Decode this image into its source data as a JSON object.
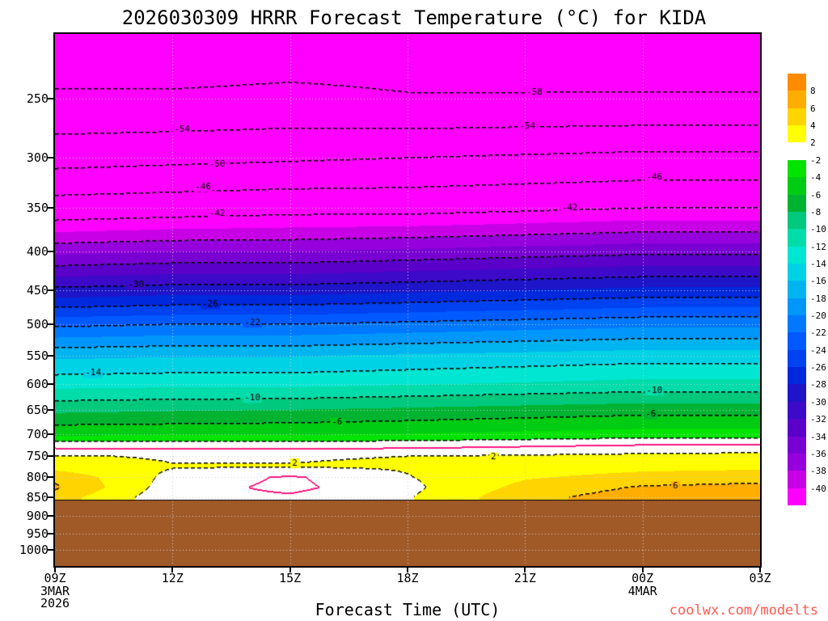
{
  "watermark": {
    "text": "coolwx.com/modelts",
    "color": "#ff5a52"
  },
  "chart_data": {
    "type": "heatmap",
    "title": "2026030309 HRRR Forecast Temperature (°C) for KIDA",
    "xlabel": "Forecast Time (UTC)",
    "model": "HRRR",
    "run": "2026030309",
    "station": "KIDA",
    "times": [
      "09Z",
      "12Z",
      "15Z",
      "18Z",
      "21Z",
      "00Z",
      "03Z"
    ],
    "x_date_labels": [
      {
        "under": "09Z",
        "lines": [
          "3MAR",
          "2026"
        ]
      },
      {
        "under": "00Z",
        "lines": [
          "4MAR"
        ]
      }
    ],
    "y_ticks": [
      250,
      300,
      350,
      400,
      450,
      500,
      550,
      600,
      650,
      700,
      750,
      800,
      850,
      900,
      950,
      1000
    ],
    "y_range": [
      205,
      1050
    ],
    "levels": [
      200,
      250,
      300,
      350,
      400,
      450,
      500,
      550,
      600,
      650,
      700,
      725,
      750,
      775,
      800,
      825,
      850
    ],
    "temps_c": [
      [
        -61,
        -57.5,
        -51.5,
        -44,
        -36.5,
        -29.5,
        -22.5,
        -16.5,
        -12.8,
        -8.5,
        -4.5,
        -0.8,
        2.2,
        3.2,
        5.5,
        6.3,
        5.0
      ],
      [
        -61,
        -57.5,
        -51,
        -43.5,
        -36,
        -29,
        -22,
        -16.2,
        -12.6,
        -8.2,
        -4.4,
        -0.9,
        1.8,
        2.1,
        1.4,
        0.9,
        0.6
      ],
      [
        -60.5,
        -57.2,
        -50.5,
        -43,
        -36,
        -29,
        -22,
        -16.2,
        -12.6,
        -8.0,
        -4.3,
        -0.8,
        1.9,
        2.05,
        -0.3,
        -0.5,
        0.3
      ],
      [
        -60,
        -57.8,
        -50,
        -43,
        -35.5,
        -28.5,
        -21.5,
        -15.8,
        -12.2,
        -7.6,
        -4.0,
        -0.7,
        2.0,
        2.2,
        1.9,
        1.5,
        1.8
      ],
      [
        -60,
        -57.8,
        -49.5,
        -42.5,
        -35,
        -28,
        -21,
        -15.4,
        -11.8,
        -7.2,
        -3.6,
        -0.3,
        2.3,
        2.8,
        3.8,
        4.6,
        5.4
      ],
      [
        -59.8,
        -57.8,
        -49,
        -42,
        -34.5,
        -27.5,
        -20.5,
        -15,
        -11.4,
        -6.8,
        -3.2,
        0.1,
        2.6,
        3.4,
        4.8,
        6.2,
        7.0
      ],
      [
        -59.8,
        -57.8,
        -49,
        -42,
        -34.5,
        -27.5,
        -20.5,
        -15,
        -11.4,
        -6.8,
        -3.2,
        0.3,
        2.8,
        3.6,
        5.2,
        6.6,
        7.8
      ]
    ],
    "surface_pressure_hpa": 857,
    "below_ground_color": "#a05a28",
    "contour_levels": [
      6,
      2,
      -2,
      -6,
      -10,
      -14,
      -18,
      -22,
      -26,
      -30,
      -34,
      -38,
      -42,
      -46,
      -50,
      -54,
      -58
    ],
    "zero_isotherm": {
      "value": 0,
      "color": "#ff1980"
    },
    "grid": {
      "color": "#cfcfcf",
      "style": "dotted"
    },
    "contour_labels": [
      {
        "text": "-58",
        "t": 0.68,
        "p": 245
      },
      {
        "text": "-54",
        "t": 0.18,
        "p": 275
      },
      {
        "text": "-54",
        "t": 0.67,
        "p": 272
      },
      {
        "text": "-50",
        "t": 0.23,
        "p": 306
      },
      {
        "text": "-46",
        "t": 0.21,
        "p": 328
      },
      {
        "text": "-46",
        "t": 0.85,
        "p": 318
      },
      {
        "text": "-42",
        "t": 0.23,
        "p": 356
      },
      {
        "text": "-42",
        "t": 0.73,
        "p": 350
      },
      {
        "text": "-30",
        "t": 0.115,
        "p": 443
      },
      {
        "text": "-26",
        "t": 0.22,
        "p": 470
      },
      {
        "text": "-22",
        "t": 0.28,
        "p": 498
      },
      {
        "text": "-14",
        "t": 0.054,
        "p": 581
      },
      {
        "text": "-10",
        "t": 0.28,
        "p": 627
      },
      {
        "text": "-10",
        "t": 0.85,
        "p": 613
      },
      {
        "text": "-6",
        "t": 0.4,
        "p": 676
      },
      {
        "text": "-6",
        "t": 0.845,
        "p": 659
      },
      {
        "text": "2",
        "t": 0.34,
        "p": 766
      },
      {
        "text": "2",
        "t": 0.622,
        "p": 752
      },
      {
        "text": "6",
        "t": 0.88,
        "p": 822
      }
    ],
    "colorbar": {
      "boundaries": [
        8,
        6,
        4,
        2,
        -2,
        -4,
        -6,
        -8,
        -10,
        -12,
        -14,
        -16,
        -18,
        -20,
        -22,
        -24,
        -26,
        -28,
        -30,
        -32,
        -34,
        -36,
        -38,
        -40
      ],
      "colors": [
        "#ff8c00",
        "#ffae00",
        "#ffd400",
        "#ffff00",
        "#ffffff",
        "#00e400",
        "#00cc14",
        "#00b432",
        "#00c87d",
        "#00dcaa",
        "#00e6d2",
        "#00d2e6",
        "#00b4f0",
        "#0096fa",
        "#0078ff",
        "#005aff",
        "#0041f0",
        "#0028dc",
        "#1e14c8",
        "#3c0ac8",
        "#5a00c8",
        "#7800d2",
        "#9600dc",
        "#c800e6",
        "#ff00ff"
      ]
    }
  }
}
